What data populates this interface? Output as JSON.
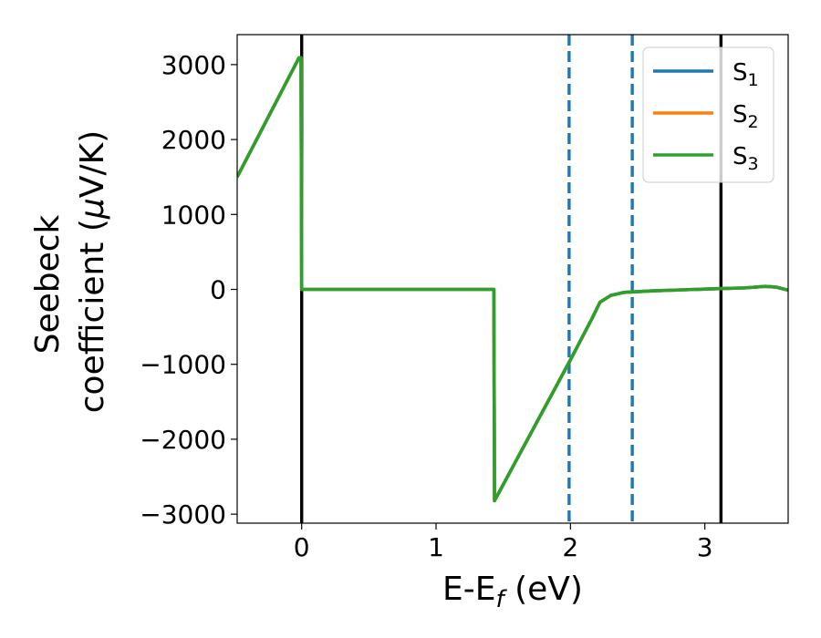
{
  "chart_data": {
    "type": "line",
    "xlabel": "E-E_f (eV)",
    "xlabel_parts": {
      "main": "E-E",
      "sub": "f",
      "unit": " (eV)"
    },
    "ylabel_line1": "Seebeck",
    "ylabel_line2_prefix": "coefficient  (",
    "ylabel_mu": "μ",
    "ylabel_line2_suffix": "V/K)",
    "xlim": [
      -0.48,
      3.62
    ],
    "ylim": [
      -3120,
      3400
    ],
    "xticks": [
      0,
      1,
      2,
      3
    ],
    "xtick_labels": [
      "0",
      "1",
      "2",
      "3"
    ],
    "yticks": [
      3000,
      2000,
      1000,
      0,
      -1000,
      -2000,
      -3000
    ],
    "ytick_labels": [
      "3000",
      "2000",
      "1000",
      "0",
      "−1000",
      "−2000",
      "−3000"
    ],
    "vlines": [
      {
        "x": 0.0,
        "style": "solid",
        "color": "#000000"
      },
      {
        "x": 3.12,
        "style": "solid",
        "color": "#000000"
      },
      {
        "x": 1.99,
        "style": "dashed",
        "color": "#1f77b4"
      },
      {
        "x": 2.46,
        "style": "dashed",
        "color": "#1f77b4"
      }
    ],
    "legend_placement": "top-right",
    "series": [
      {
        "name": "S",
        "sub": "1",
        "color": "#1f77b4",
        "x": [
          -0.48,
          -0.02,
          -0.005,
          0.0,
          1.43,
          1.435,
          2.0,
          2.16,
          2.22,
          2.3,
          2.4,
          2.6,
          3.1,
          3.3,
          3.45,
          3.53,
          3.62
        ],
        "y": [
          1500,
          3090,
          3090,
          0,
          0,
          -2820,
          -940,
          -390,
          -170,
          -80,
          -40,
          -20,
          10,
          20,
          40,
          30,
          -10
        ]
      },
      {
        "name": "S",
        "sub": "2",
        "color": "#ff7f0e",
        "x": [
          -0.48,
          -0.02,
          -0.005,
          0.0,
          1.43,
          1.435,
          2.0,
          2.16,
          2.22,
          2.3,
          2.4,
          2.6,
          3.1,
          3.3,
          3.45,
          3.53,
          3.62
        ],
        "y": [
          1500,
          3090,
          3090,
          0,
          0,
          -2820,
          -940,
          -390,
          -170,
          -80,
          -40,
          -20,
          10,
          20,
          40,
          30,
          -10
        ]
      },
      {
        "name": "S",
        "sub": "3",
        "color": "#2ca02c",
        "x": [
          -0.48,
          -0.02,
          -0.005,
          0.0,
          1.43,
          1.435,
          2.0,
          2.16,
          2.22,
          2.3,
          2.4,
          2.6,
          3.1,
          3.3,
          3.45,
          3.53,
          3.62
        ],
        "y": [
          1500,
          3090,
          3090,
          0,
          0,
          -2820,
          -940,
          -390,
          -170,
          -80,
          -40,
          -20,
          10,
          20,
          40,
          30,
          -10
        ]
      }
    ]
  }
}
